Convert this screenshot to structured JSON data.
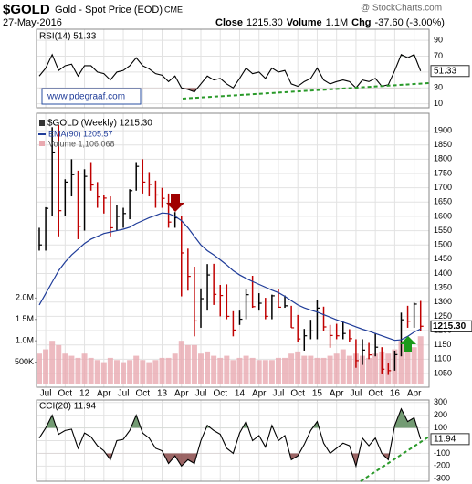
{
  "header": {
    "symbol": "$GOLD",
    "name": "Gold - Spot Price (EOD)",
    "exchange": "CME",
    "date": "27-May-2016",
    "stats": [
      "Close",
      "1215.30",
      "Volume",
      "1.1M",
      "Chg",
      "-37.60 (-3.00%)"
    ],
    "source": "@ StockCharts.com"
  },
  "chart_data": [
    {
      "type": "line",
      "title": "RSI(14) 51.33",
      "color": "#000000",
      "annotation": "www.pdegraaf.com",
      "values": [
        45,
        55,
        72,
        52,
        58,
        60,
        45,
        58,
        58,
        50,
        48,
        40,
        50,
        52,
        58,
        68,
        58,
        54,
        48,
        46,
        38,
        45,
        30,
        28,
        25,
        35,
        45,
        40,
        42,
        35,
        30,
        42,
        55,
        48,
        50,
        42,
        55,
        50,
        52,
        35,
        32,
        38,
        42,
        55,
        40,
        35,
        38,
        40,
        38,
        30,
        40,
        38,
        42,
        32,
        34,
        52,
        72,
        68,
        72,
        51.33
      ],
      "ylim": [
        5,
        104
      ],
      "yticks": [
        90,
        70,
        50,
        30,
        10
      ],
      "grid": true
    },
    {
      "type": "ohlc",
      "title": "$GOLD (Weekly) 1215.30",
      "close_label": "1215.30",
      "x": [
        "2011-06",
        "2011-07",
        "2011-08",
        "2011-09",
        "2011-10",
        "2011-11",
        "2011-12",
        "2012-01",
        "2012-02",
        "2012-03",
        "2012-04",
        "2012-05",
        "2012-06",
        "2012-07",
        "2012-08",
        "2012-09",
        "2012-10",
        "2012-11",
        "2012-12",
        "2013-01",
        "2013-02",
        "2013-03",
        "2013-04",
        "2013-05",
        "2013-06",
        "2013-07",
        "2013-08",
        "2013-09",
        "2013-10",
        "2013-11",
        "2013-12",
        "2014-01",
        "2014-02",
        "2014-03",
        "2014-04",
        "2014-05",
        "2014-06",
        "2014-07",
        "2014-08",
        "2014-09",
        "2014-10",
        "2014-11",
        "2014-12",
        "2015-01",
        "2015-02",
        "2015-03",
        "2015-04",
        "2015-05",
        "2015-06",
        "2015-07",
        "2015-08",
        "2015-09",
        "2015-10",
        "2015-11",
        "2015-12",
        "2016-01",
        "2016-02",
        "2016-03",
        "2016-04",
        "2016-05"
      ],
      "high": [
        1560,
        1632,
        1912,
        1920,
        1730,
        1800,
        1760,
        1765,
        1790,
        1720,
        1675,
        1670,
        1640,
        1630,
        1695,
        1790,
        1800,
        1755,
        1725,
        1700,
        1680,
        1615,
        1600,
        1487,
        1424,
        1348,
        1433,
        1434,
        1360,
        1362,
        1268,
        1270,
        1345,
        1392,
        1331,
        1315,
        1326,
        1345,
        1323,
        1287,
        1255,
        1206,
        1238,
        1307,
        1284,
        1220,
        1224,
        1232,
        1205,
        1170,
        1170,
        1157,
        1191,
        1142,
        1085,
        1130,
        1263,
        1287,
        1298,
        1304
      ],
      "low": [
        1480,
        1480,
        1600,
        1530,
        1600,
        1670,
        1520,
        1550,
        1690,
        1630,
        1610,
        1530,
        1550,
        1560,
        1590,
        1690,
        1680,
        1670,
        1630,
        1630,
        1560,
        1560,
        1320,
        1340,
        1180,
        1210,
        1270,
        1290,
        1250,
        1240,
        1180,
        1220,
        1240,
        1280,
        1270,
        1240,
        1240,
        1280,
        1280,
        1210,
        1160,
        1130,
        1170,
        1170,
        1200,
        1140,
        1170,
        1170,
        1160,
        1070,
        1080,
        1100,
        1110,
        1050,
        1045,
        1060,
        1110,
        1210,
        1210,
        1200
      ],
      "close": [
        1500,
        1628,
        1825,
        1620,
        1720,
        1746,
        1565,
        1740,
        1710,
        1668,
        1664,
        1560,
        1600,
        1610,
        1690,
        1775,
        1720,
        1712,
        1675,
        1663,
        1580,
        1595,
        1472,
        1390,
        1234,
        1312,
        1395,
        1327,
        1323,
        1250,
        1202,
        1240,
        1326,
        1284,
        1296,
        1250,
        1322,
        1282,
        1287,
        1210,
        1171,
        1182,
        1199,
        1279,
        1213,
        1183,
        1182,
        1190,
        1172,
        1095,
        1132,
        1115,
        1142,
        1065,
        1060,
        1116,
        1238,
        1233,
        1293,
        1215.3
      ],
      "color_up": "#000000",
      "color_down": "#c00000",
      "series": [
        {
          "name": "EMA(90) 1205.57",
          "color": "#1f3c99",
          "values": [
            1290,
            1330,
            1370,
            1410,
            1440,
            1465,
            1485,
            1505,
            1520,
            1530,
            1540,
            1545,
            1550,
            1555,
            1562,
            1575,
            1585,
            1595,
            1603,
            1612,
            1610,
            1600,
            1585,
            1560,
            1530,
            1500,
            1480,
            1465,
            1448,
            1430,
            1410,
            1395,
            1383,
            1372,
            1362,
            1352,
            1342,
            1333,
            1320,
            1305,
            1290,
            1280,
            1272,
            1265,
            1256,
            1247,
            1238,
            1230,
            1222,
            1213,
            1205,
            1198,
            1190,
            1182,
            1174,
            1166,
            1168,
            1180,
            1195,
            1205.57
          ]
        },
        {
          "name": "Volume 1,106,068",
          "color": "#e9a9b0",
          "axis": "y2",
          "values": [
            700000,
            800000,
            1000000,
            900000,
            700000,
            650000,
            600000,
            700000,
            600000,
            550000,
            500000,
            600000,
            550000,
            500000,
            550000,
            650000,
            550000,
            500000,
            550000,
            600000,
            600000,
            700000,
            1000000,
            900000,
            900000,
            700000,
            750000,
            650000,
            600000,
            650000,
            550000,
            600000,
            650000,
            600000,
            550000,
            550000,
            550000,
            600000,
            600000,
            700000,
            750000,
            650000,
            650000,
            600000,
            600000,
            650000,
            700000,
            800000,
            650000,
            700000,
            650000,
            600000,
            700000,
            750000,
            700000,
            800000,
            1000000,
            900000,
            850000,
            1106068
          ]
        }
      ],
      "ylim": [
        1002,
        1961
      ],
      "yticks": [
        1050,
        1100,
        1150,
        1200,
        1250,
        1300,
        1350,
        1400,
        1450,
        1500,
        1550,
        1600,
        1650,
        1700,
        1750,
        1800,
        1850,
        1900
      ],
      "y2lim": [
        0,
        2200000
      ],
      "y2ticks": [
        {
          "value": 500000,
          "label": "500K"
        },
        {
          "value": 1000000,
          "label": "1.0M"
        },
        {
          "value": 1500000,
          "label": "1.5M"
        },
        {
          "value": 2000000,
          "label": "2.0M"
        }
      ],
      "xticks": [
        {
          "value": "2011-07",
          "label": "Jul"
        },
        {
          "value": "2011-10",
          "label": "Oct"
        },
        {
          "value": "2012-01",
          "label": "12"
        },
        {
          "value": "2012-04",
          "label": "Apr"
        },
        {
          "value": "2012-07",
          "label": "Jul"
        },
        {
          "value": "2012-10",
          "label": "Oct"
        },
        {
          "value": "2013-01",
          "label": "13"
        },
        {
          "value": "2013-04",
          "label": "Apr"
        },
        {
          "value": "2013-07",
          "label": "Jul"
        },
        {
          "value": "2013-10",
          "label": "Oct"
        },
        {
          "value": "2014-01",
          "label": "14"
        },
        {
          "value": "2014-04",
          "label": "Apr"
        },
        {
          "value": "2014-07",
          "label": "Jul"
        },
        {
          "value": "2014-10",
          "label": "Oct"
        },
        {
          "value": "2015-01",
          "label": "15"
        },
        {
          "value": "2015-04",
          "label": "Apr"
        },
        {
          "value": "2015-07",
          "label": "Jul"
        },
        {
          "value": "2015-10",
          "label": "Oct"
        },
        {
          "value": "2016-01",
          "label": "16"
        },
        {
          "value": "2016-04",
          "label": "Apr"
        }
      ],
      "grid": true
    },
    {
      "type": "line",
      "title": "CCI(20) 11.94",
      "color": "#000000",
      "values": [
        20,
        100,
        200,
        50,
        80,
        90,
        -60,
        60,
        30,
        -40,
        -80,
        -150,
        0,
        10,
        80,
        200,
        60,
        20,
        -60,
        -80,
        -180,
        -120,
        -200,
        -150,
        -180,
        0,
        120,
        80,
        50,
        -60,
        -100,
        60,
        150,
        0,
        40,
        -50,
        120,
        0,
        40,
        -150,
        -120,
        -30,
        80,
        150,
        -20,
        -100,
        -60,
        -20,
        -40,
        -200,
        20,
        -40,
        20,
        -100,
        -150,
        120,
        250,
        150,
        180,
        11.94
      ],
      "ylim": [
        -320,
        320
      ],
      "yticks": [
        300,
        200,
        100,
        0,
        -100,
        -200,
        -300
      ],
      "grid": true
    }
  ]
}
